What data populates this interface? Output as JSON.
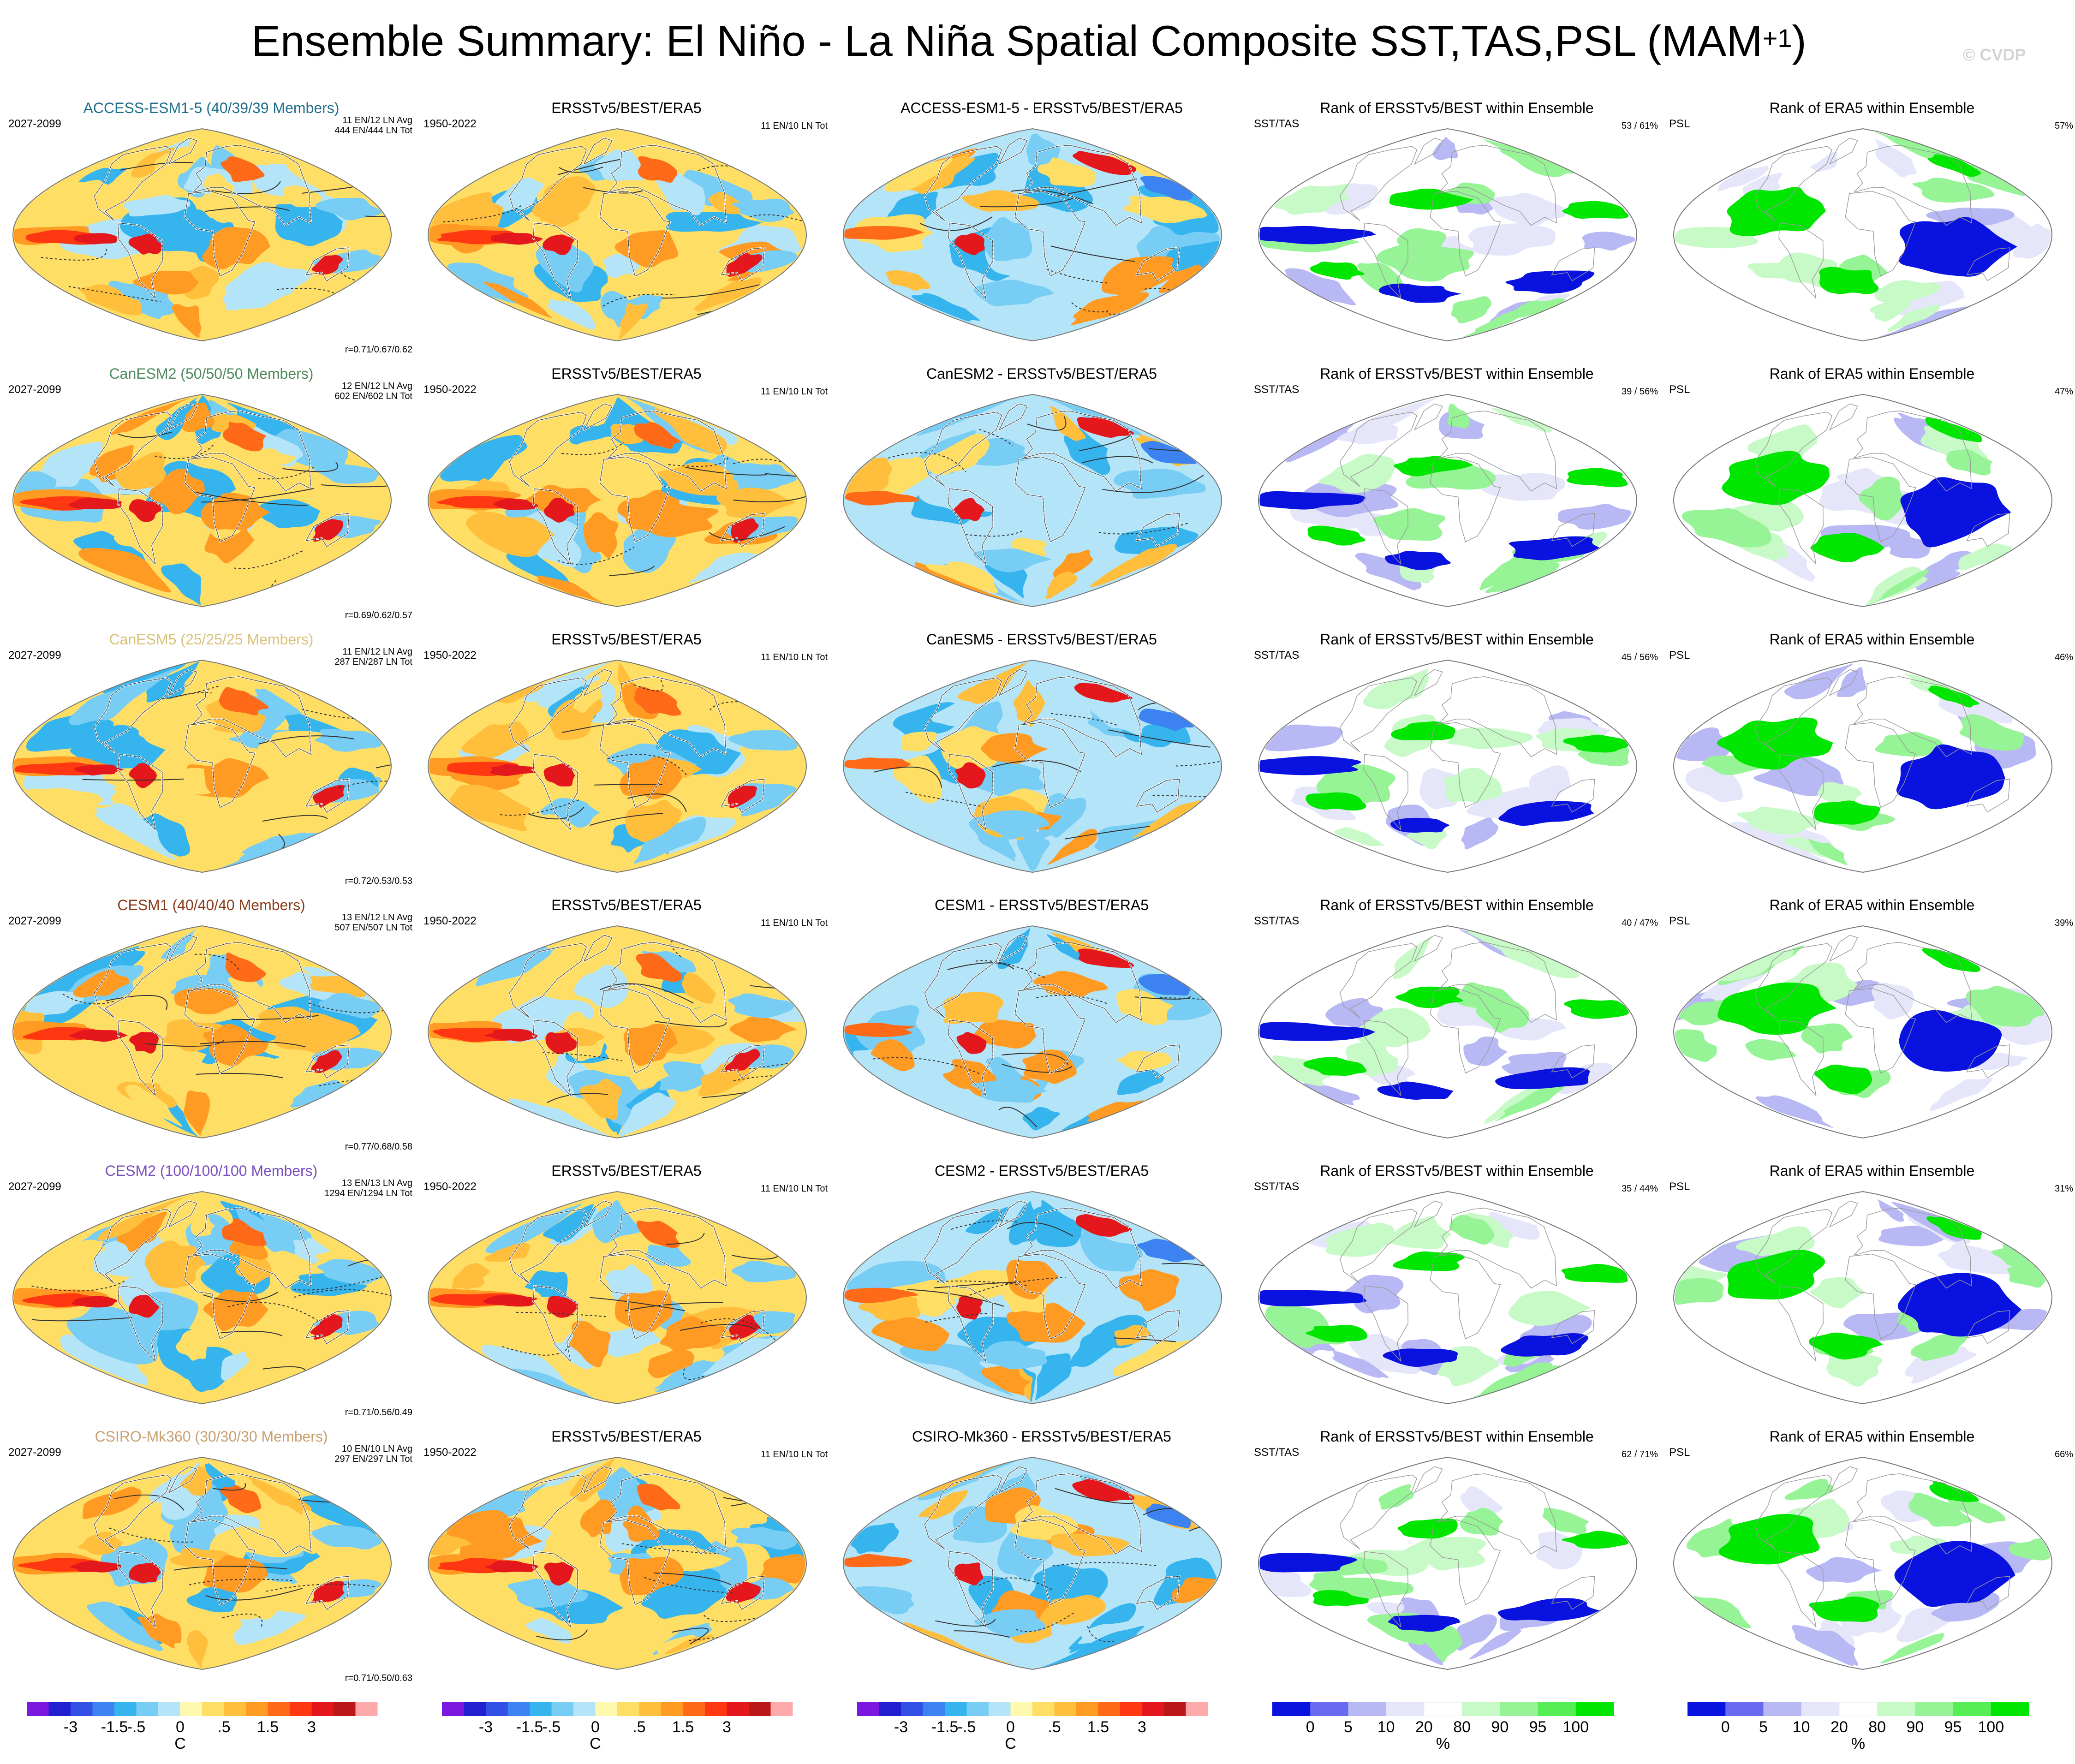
{
  "title": {
    "main": "Ensemble Summary: El Niño - La Niña Spatial Composite SST,TAS,PSL (MAM",
    "sup": "+1",
    "close": ")"
  },
  "watermark": "© CVDP",
  "colors": {
    "diverging": [
      "#7b18e0",
      "#2020d0",
      "#3250e6",
      "#3c82f0",
      "#36b4ee",
      "#78cdf5",
      "#b4e4f8",
      "#fff9b0",
      "#ffde66",
      "#ffbe3c",
      "#ff9a22",
      "#ff6a18",
      "#ff3812",
      "#e4181c",
      "#ba1818",
      "#ffaaaa"
    ],
    "rank": [
      "#0a12e0",
      "#6a6af0",
      "#b8b8f4",
      "#e6e6fb",
      "#ffffff",
      "#c8fac8",
      "#96f496",
      "#55ee55",
      "#00e600"
    ],
    "land_outline": "#ffffff",
    "coast": "#555555"
  },
  "panel_labels": {
    "obs_title": "ERSSTv5/BEST/ERA5",
    "obs_period": "1950-2022",
    "obs_counts": "11 EN/10 LN Tot",
    "rank_sst_title": "Rank of ERSSTv5/BEST within Ensemble",
    "rank_sst_var": "SST/TAS",
    "rank_psl_title": "Rank of ERA5 within Ensemble",
    "rank_psl_var": "PSL",
    "diff_suffix": " - ERSSTv5/BEST/ERA5"
  },
  "rows": [
    {
      "model": "ACCESS-ESM1-5",
      "title": "ACCESS-ESM1-5 (40/39/39 Members)",
      "title_color": "#1f6f8b",
      "period": "2027-2099",
      "avg": "11 EN/12 LN Avg",
      "tot": "444 EN/444 LN Tot",
      "corr": "r=0.71/0.67/0.62",
      "diff_title": "ACCESS-ESM1-5 - ERSSTv5/BEST/ERA5",
      "rank_sst_pct": "53 /  61%",
      "rank_psl_pct": "57%"
    },
    {
      "model": "CanESM2",
      "title": "CanESM2 (50/50/50 Members)",
      "title_color": "#4f8a5e",
      "period": "2027-2099",
      "avg": "12 EN/12 LN Avg",
      "tot": "602 EN/602 LN Tot",
      "corr": "r=0.69/0.62/0.57",
      "diff_title": "CanESM2 - ERSSTv5/BEST/ERA5",
      "rank_sst_pct": "39 /  56%",
      "rank_psl_pct": "47%"
    },
    {
      "model": "CanESM5",
      "title": "CanESM5 (25/25/25 Members)",
      "title_color": "#d9c27a",
      "period": "2027-2099",
      "avg": "11 EN/12 LN Avg",
      "tot": "287 EN/287 LN Tot",
      "corr": "r=0.72/0.53/0.53",
      "diff_title": "CanESM5 - ERSSTv5/BEST/ERA5",
      "rank_sst_pct": "45 /  56%",
      "rank_psl_pct": "46%"
    },
    {
      "model": "CESM1",
      "title": "CESM1 (40/40/40 Members)",
      "title_color": "#8b3a1a",
      "period": "2027-2099",
      "avg": "13 EN/12 LN Avg",
      "tot": "507 EN/507 LN Tot",
      "corr": "r=0.77/0.68/0.58",
      "diff_title": "CESM1 - ERSSTv5/BEST/ERA5",
      "rank_sst_pct": "40 /  47%",
      "rank_psl_pct": "39%"
    },
    {
      "model": "CESM2",
      "title": "CESM2 (100/100/100 Members)",
      "title_color": "#7b4fc0",
      "period": "2027-2099",
      "avg": "13 EN/13 LN Avg",
      "tot": "1294 EN/1294 LN Tot",
      "corr": "r=0.71/0.56/0.49",
      "diff_title": "CESM2 - ERSSTv5/BEST/ERA5",
      "rank_sst_pct": "35 /  44%",
      "rank_psl_pct": "31%"
    },
    {
      "model": "CSIRO-Mk360",
      "title": "CSIRO-Mk360 (30/30/30 Members)",
      "title_color": "#c8a070",
      "period": "2027-2099",
      "avg": "10 EN/10 LN Avg",
      "tot": "297 EN/297 LN Tot",
      "corr": "r=0.71/0.50/0.63",
      "diff_title": "CSIRO-Mk360 - ERSSTv5/BEST/ERA5",
      "rank_sst_pct": "62 /  71%",
      "rank_psl_pct": "66%"
    }
  ],
  "colorbars": {
    "temp_ticks": [
      "-3",
      "-1.5",
      "-.5",
      "0",
      ".5",
      "1.5",
      "3"
    ],
    "temp_unit": "C",
    "rank_ticks": [
      "0",
      "5",
      "10",
      "20",
      "80",
      "90",
      "95",
      "100"
    ],
    "rank_unit": "%"
  }
}
